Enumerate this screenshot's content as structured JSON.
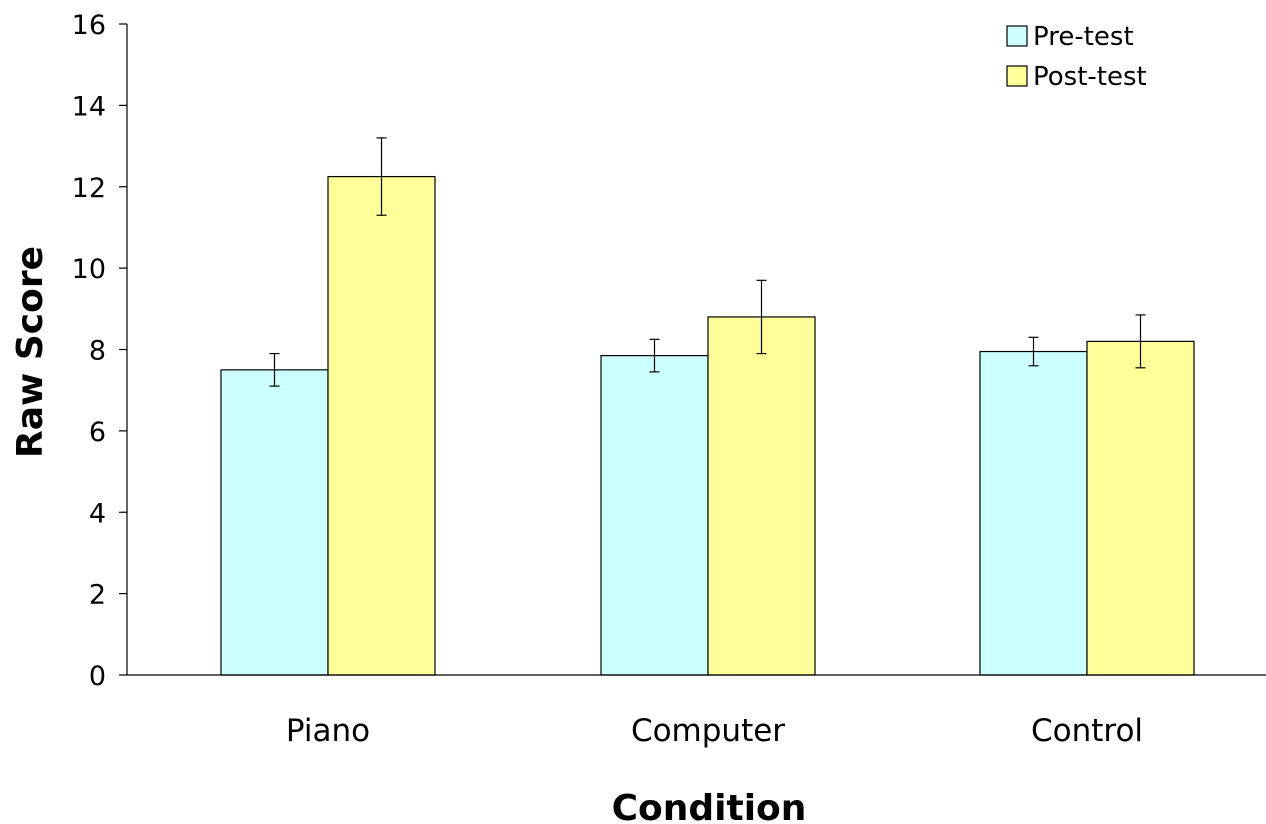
{
  "chart_data": {
    "type": "bar",
    "title": "",
    "xlabel": "Condition",
    "ylabel": "Raw Score",
    "categories": [
      "Piano",
      "Computer",
      "Control"
    ],
    "series": [
      {
        "name": "Pre-test",
        "values": [
          7.5,
          7.85,
          7.95
        ],
        "errors": [
          0.4,
          0.4,
          0.35
        ],
        "color": "#ccffff"
      },
      {
        "name": "Post-test",
        "values": [
          12.25,
          8.8,
          8.2
        ],
        "errors": [
          0.95,
          0.9,
          0.65
        ],
        "color": "#ffff99"
      }
    ],
    "ylim": [
      0,
      16
    ],
    "yticks": [
      0,
      2,
      4,
      6,
      8,
      10,
      12,
      14,
      16
    ],
    "grid": false,
    "legend_position": "top-right",
    "error_bars": true
  }
}
